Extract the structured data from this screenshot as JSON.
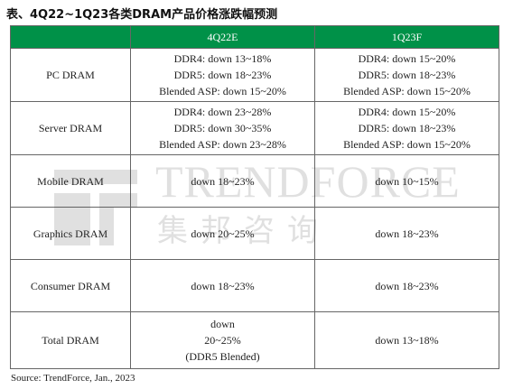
{
  "title": "表、4Q22~1Q23各类DRAM产品价格涨跌幅预测",
  "table": {
    "headers": [
      "",
      "4Q22E",
      "1Q23F"
    ],
    "rows": [
      {
        "label": "PC DRAM",
        "q4": [
          "DDR4: down 13~18%",
          "DDR5: down 18~23%",
          "Blended ASP: down 15~20%"
        ],
        "q1": [
          "DDR4: down 15~20%",
          "DDR5: down 18~23%",
          "Blended ASP: down 15~20%"
        ]
      },
      {
        "label": "Server DRAM",
        "q4": [
          "DDR4: down 23~28%",
          "DDR5: down 30~35%",
          "Blended ASP: down 23~28%"
        ],
        "q1": [
          "DDR4: down 15~20%",
          "DDR5: down 18~23%",
          "Blended ASP: down 15~20%"
        ]
      },
      {
        "label": "Mobile DRAM",
        "q4": [
          "down 18~23%"
        ],
        "q1": [
          "down 10~15%"
        ]
      },
      {
        "label": "Graphics DRAM",
        "q4": [
          "down 20~25%"
        ],
        "q1": [
          "down 18~23%"
        ]
      },
      {
        "label": "Consumer DRAM",
        "q4": [
          "down 18~23%"
        ],
        "q1": [
          "down 18~23%"
        ]
      },
      {
        "label": "Total DRAM",
        "q4": [
          "down",
          "20~25%",
          "(DDR5 Blended)"
        ],
        "q1": [
          "down 13~18%"
        ]
      }
    ]
  },
  "watermark": {
    "brand": "TRENDFORCE",
    "chinese": "集邦咨询"
  },
  "source": "Source: TrendForce, Jan., 2023",
  "colors": {
    "header_bg": "#009148",
    "header_text": "#ffffff",
    "border": "#666666"
  }
}
